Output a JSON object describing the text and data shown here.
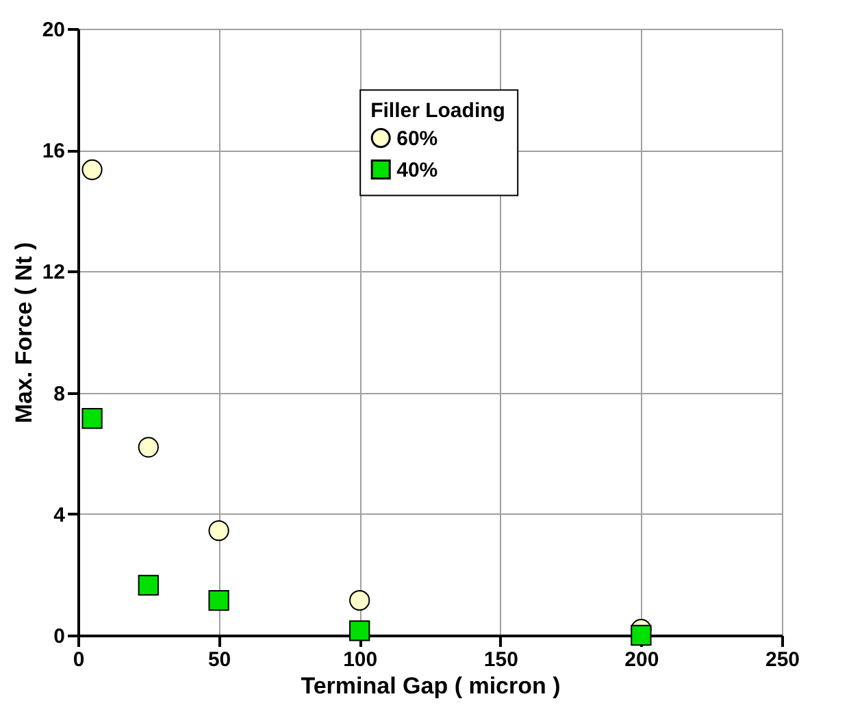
{
  "chart_data": {
    "type": "scatter",
    "xlabel": "Terminal Gap ( micron )",
    "ylabel": "Max. Force ( Nt )",
    "legend_title": "Filler Loading",
    "xlim": [
      0,
      250
    ],
    "xticks": [
      0,
      50,
      100,
      150,
      200,
      250
    ],
    "ylim": [
      0,
      20
    ],
    "yticks": [
      0,
      4,
      8,
      12,
      16,
      20
    ],
    "grid": true,
    "legend": "top",
    "x": [
      5,
      25,
      50,
      100,
      200
    ],
    "series": [
      {
        "name": "60%",
        "color": "#ffffcc",
        "marker": "circle",
        "values": [
          15.35,
          6.2,
          3.45,
          1.15,
          0.2
        ]
      },
      {
        "name": "40%",
        "color": "#00e000",
        "marker": "square",
        "values": [
          7.15,
          1.65,
          1.15,
          0.15,
          0.0
        ]
      }
    ]
  }
}
